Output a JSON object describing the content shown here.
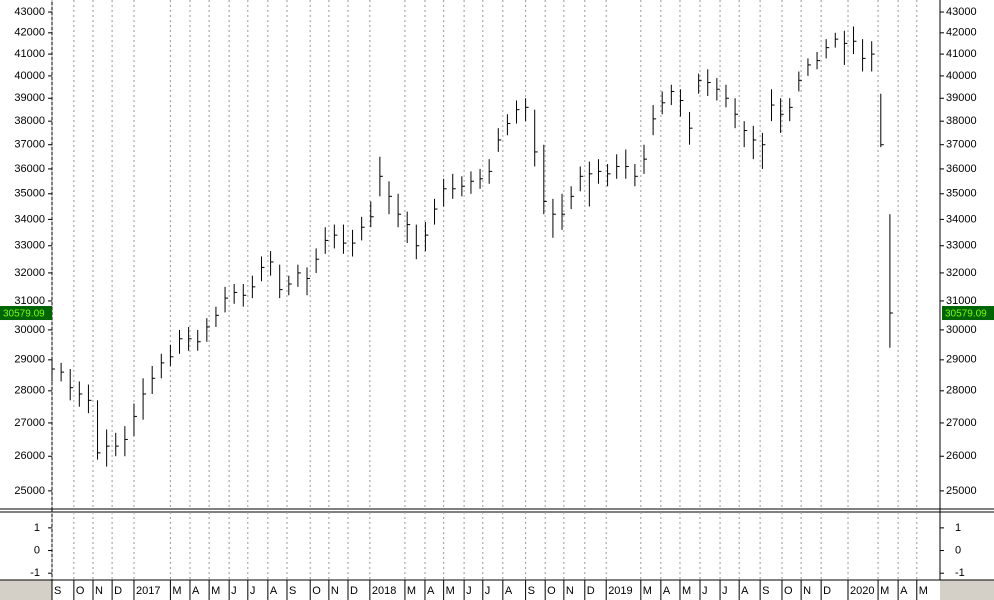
{
  "chart_data": {
    "type": "ohlc",
    "log_scale": true,
    "color": "#000000",
    "grid": true,
    "x": [
      0,
      2,
      4,
      6,
      8,
      10,
      12,
      14,
      16,
      18,
      20,
      22,
      24,
      26,
      28,
      30,
      32,
      34,
      36,
      38,
      40,
      42,
      44,
      46,
      48,
      50,
      52,
      54,
      56,
      58,
      60,
      62,
      64,
      66,
      68,
      70,
      72,
      74,
      76,
      78,
      80,
      82,
      84,
      86,
      88,
      90,
      92,
      94,
      96,
      98,
      100,
      102,
      104,
      106,
      108,
      110,
      112,
      114,
      116,
      118,
      120,
      122,
      124,
      126,
      128,
      130,
      132,
      134,
      136,
      138,
      140,
      142,
      144,
      146,
      148,
      150,
      152,
      154,
      156,
      158,
      160,
      162,
      164,
      166,
      168,
      170,
      172,
      174,
      176,
      178,
      180,
      182,
      184
    ],
    "high": [
      29000,
      28900,
      28700,
      28300,
      28200,
      27700,
      26800,
      26700,
      26900,
      27600,
      28400,
      28800,
      29200,
      29500,
      30000,
      30100,
      30000,
      30400,
      30800,
      31500,
      31600,
      31600,
      31900,
      32600,
      32800,
      32300,
      31900,
      32300,
      32200,
      32900,
      33700,
      33800,
      33800,
      33600,
      34100,
      34700,
      36500,
      35500,
      35000,
      34300,
      33800,
      33900,
      34800,
      35600,
      35800,
      35700,
      35900,
      36000,
      36400,
      37700,
      38300,
      38900,
      39000,
      38500,
      37000,
      34800,
      35000,
      35300,
      36100,
      36300,
      36400,
      36200,
      36600,
      36800,
      36200,
      37000,
      38700,
      39300,
      39600,
      39400,
      38400,
      40100,
      40300,
      39900,
      39600,
      39000,
      38000,
      37800,
      37500,
      39400,
      39000,
      39000,
      40200,
      40800,
      41100,
      41700,
      42000,
      42100,
      42300,
      41700,
      41600,
      39200,
      34200
    ],
    "low": [
      28300,
      28300,
      27700,
      27500,
      27300,
      25900,
      25700,
      26000,
      26000,
      26600,
      27100,
      27900,
      28400,
      28800,
      29200,
      29300,
      29300,
      29600,
      30100,
      30600,
      30900,
      30800,
      31100,
      31700,
      31900,
      31100,
      31200,
      31500,
      31200,
      32000,
      32700,
      32900,
      32700,
      32600,
      33200,
      33700,
      34900,
      34200,
      33700,
      33100,
      32500,
      32800,
      33800,
      34500,
      34800,
      34900,
      35000,
      35200,
      35400,
      36700,
      37400,
      37900,
      38000,
      36100,
      34200,
      33300,
      33600,
      34400,
      35100,
      34500,
      35400,
      35300,
      35600,
      35600,
      35300,
      35800,
      37400,
      38300,
      38700,
      38200,
      37000,
      39200,
      39100,
      38900,
      38600,
      37700,
      36900,
      36400,
      36000,
      38000,
      37500,
      38000,
      39300,
      40000,
      40300,
      40800,
      41300,
      40500,
      41000,
      40200,
      40200,
      36900,
      29400
    ],
    "close": [
      28700,
      28600,
      28100,
      27900,
      27700,
      26100,
      26300,
      26300,
      26500,
      27200,
      27900,
      28400,
      28900,
      29100,
      29700,
      29700,
      29600,
      30100,
      30500,
      31100,
      31300,
      31200,
      31500,
      32200,
      32400,
      31400,
      31600,
      32000,
      31800,
      32500,
      33200,
      33400,
      33100,
      33100,
      33700,
      34100,
      35700,
      34900,
      34200,
      33800,
      33000,
      33400,
      34400,
      35200,
      35200,
      35300,
      35500,
      35600,
      35900,
      37200,
      37900,
      38500,
      38600,
      36700,
      34700,
      34200,
      34200,
      34900,
      35700,
      35800,
      35900,
      35800,
      36100,
      36100,
      35700,
      36400,
      38100,
      38800,
      39300,
      38900,
      37700,
      39800,
      39700,
      39400,
      39000,
      38300,
      37600,
      37200,
      37000,
      38700,
      38300,
      38600,
      39800,
      40500,
      40700,
      41300,
      41700,
      41500,
      41600,
      40800,
      41000,
      37000,
      30579.09
    ],
    "xlim": [
      0,
      195
    ],
    "xticks": [
      {
        "value": 0,
        "label": "S"
      },
      {
        "value": 4.8,
        "label": "O"
      },
      {
        "value": 9,
        "label": "N"
      },
      {
        "value": 13.2,
        "label": "D"
      },
      {
        "value": 18,
        "label": "2017"
      },
      {
        "value": 26,
        "label": "M"
      },
      {
        "value": 30.3,
        "label": "A"
      },
      {
        "value": 34.5,
        "label": "M"
      },
      {
        "value": 38.9,
        "label": "J"
      },
      {
        "value": 43,
        "label": "J"
      },
      {
        "value": 47.4,
        "label": "A"
      },
      {
        "value": 51.6,
        "label": "S"
      },
      {
        "value": 56.7,
        "label": "O"
      },
      {
        "value": 60.8,
        "label": "N"
      },
      {
        "value": 65,
        "label": "D"
      },
      {
        "value": 69.8,
        "label": "2018"
      },
      {
        "value": 77.5,
        "label": "M"
      },
      {
        "value": 81.9,
        "label": "A"
      },
      {
        "value": 86,
        "label": "M"
      },
      {
        "value": 90.5,
        "label": "J"
      },
      {
        "value": 94.6,
        "label": "J"
      },
      {
        "value": 99,
        "label": "A"
      },
      {
        "value": 104,
        "label": "S"
      },
      {
        "value": 108.3,
        "label": "O"
      },
      {
        "value": 112.4,
        "label": "N"
      },
      {
        "value": 117,
        "label": "D"
      },
      {
        "value": 121.7,
        "label": "2019"
      },
      {
        "value": 129.3,
        "label": "M"
      },
      {
        "value": 133.7,
        "label": "A"
      },
      {
        "value": 137.9,
        "label": "M"
      },
      {
        "value": 142.3,
        "label": "J"
      },
      {
        "value": 146.7,
        "label": "J"
      },
      {
        "value": 150.9,
        "label": "A"
      },
      {
        "value": 155.5,
        "label": "S"
      },
      {
        "value": 160.3,
        "label": "O"
      },
      {
        "value": 164.5,
        "label": "N"
      },
      {
        "value": 168.9,
        "label": "D"
      },
      {
        "value": 174.8,
        "label": "2020"
      },
      {
        "value": 181.4,
        "label": "M"
      },
      {
        "value": 185.8,
        "label": "A"
      },
      {
        "value": 189.9,
        "label": "M"
      }
    ],
    "ylim": [
      24520,
      43590
    ],
    "yticks": [
      25000,
      26000,
      27000,
      28000,
      29000,
      30000,
      31000,
      32000,
      33000,
      34000,
      35000,
      36000,
      37000,
      38000,
      39000,
      40000,
      41000,
      42000,
      43000
    ],
    "lower_panel": {
      "ylim": [
        -1.3,
        1.7
      ],
      "yticks": [
        1,
        0,
        -1
      ]
    }
  }
}
